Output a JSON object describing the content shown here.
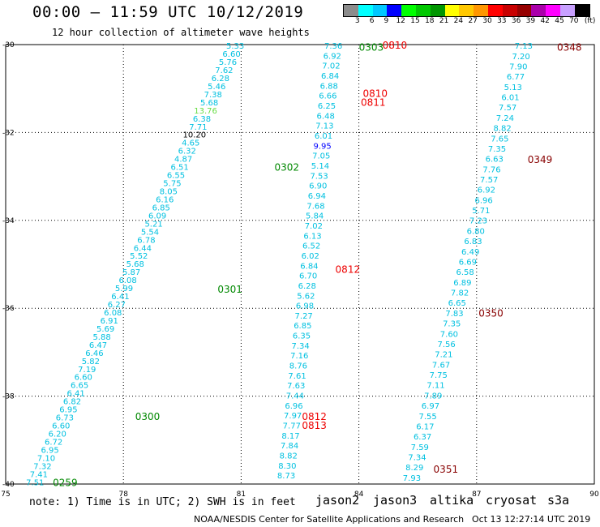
{
  "header": {
    "title": "00:00 — 11:59 UTC 10/12/2019",
    "subtitle": "12 hour collection of altimeter wave heights"
  },
  "colorbar": {
    "unit": "(ft)",
    "labels": [
      "3",
      "6",
      "9",
      "12",
      "15",
      "18",
      "21",
      "24",
      "27",
      "30",
      "33",
      "36",
      "39",
      "42",
      "45",
      "70"
    ],
    "colors": [
      "#8c8c8c",
      "#00ffff",
      "#00c8ff",
      "#0000ff",
      "#00ff00",
      "#00c800",
      "#009600",
      "#ffff00",
      "#ffc800",
      "#ff9600",
      "#ff0000",
      "#c80000",
      "#960000",
      "#aa00aa",
      "#ff00ff",
      "#c8a0ff",
      "#000000"
    ]
  },
  "map": {
    "lon_ticks": [
      "75",
      "78",
      "81",
      "84",
      "87",
      "90"
    ],
    "lat_ticks": [
      "-30",
      "-32",
      "-34",
      "-36",
      "-38",
      "-40"
    ],
    "xlim": [
      75,
      90
    ],
    "ylim": [
      -40,
      -30
    ],
    "wave_colors": {
      "cyan": "#00c0e0",
      "blue": "#0000ff",
      "green": "#00aa00",
      "lgreen": "#66dd44"
    },
    "track1_values": [
      "5.33",
      "6.60",
      "5.76",
      "7.62",
      "6.28",
      "5.46",
      "7.38",
      "5.68",
      "13.76",
      "6.38",
      "7.71",
      "10.20",
      "4.65",
      "6.32",
      "4.87",
      "6.51",
      "6.55",
      "5.75",
      "8.05",
      "6.16",
      "6.85",
      "6.09",
      "5.21",
      "5.54",
      "6.78",
      "6.44",
      "5.52",
      "5.68",
      "5.87",
      "6.08",
      "5.99",
      "6.41",
      "6.27",
      "6.08",
      "6.91",
      "5.69",
      "5.88",
      "6.47",
      "6.46",
      "5.82",
      "7.19",
      "6.60",
      "6.65",
      "6.41",
      "6.82",
      "6.95",
      "6.73",
      "6.60",
      "6.20",
      "6.72",
      "6.95",
      "7.10",
      "7.32",
      "7.41",
      "7.51"
    ],
    "track1_colors": [
      "c",
      "c",
      "c",
      "c",
      "c",
      "c",
      "c",
      "c",
      "g",
      "c",
      "c",
      "k",
      "c",
      "c",
      "c",
      "c",
      "c",
      "c",
      "c",
      "c",
      "c",
      "c",
      "c",
      "c",
      "c",
      "c",
      "c",
      "c",
      "c",
      "c",
      "c",
      "c",
      "c",
      "c",
      "c",
      "c",
      "c",
      "c",
      "c",
      "c",
      "c",
      "c",
      "c",
      "c",
      "c",
      "c",
      "c",
      "c",
      "c",
      "c",
      "c",
      "c",
      "c",
      "c",
      "c"
    ],
    "track2_values": [
      "7.36",
      "6.92",
      "7.02",
      "6.84",
      "6.88",
      "6.66",
      "6.25",
      "6.48",
      "7.13",
      "6.01",
      "9.95",
      "7.05",
      "5.14",
      "7.53",
      "6.90",
      "6.94",
      "7.68",
      "5.84",
      "7.02",
      "6.13",
      "6.52",
      "6.02",
      "6.84",
      "6.70",
      "6.28",
      "5.62",
      "6.98",
      "7.27",
      "6.85",
      "6.35",
      "7.34",
      "7.16",
      "8.76",
      "7.61",
      "7.63",
      "7.44",
      "6.96",
      "7.97",
      "7.77",
      "8.17",
      "7.84",
      "8.82",
      "8.30",
      "8.73"
    ],
    "track3_values": [
      "7.13",
      "7.20",
      "7.90",
      "6.77",
      "5.13",
      "6.01",
      "7.57",
      "7.24",
      "8.82",
      "7.65",
      "7.35",
      "6.63",
      "7.76",
      "7.57",
      "6.92",
      "6.96",
      "5.71",
      "7.23",
      "6.80",
      "6.83",
      "6.49",
      "6.69",
      "6.58",
      "6.89",
      "7.82",
      "6.65",
      "7.83",
      "7.35",
      "7.60",
      "7.56",
      "7.21",
      "7.67",
      "7.75",
      "7.11",
      "7.89",
      "6.97",
      "7.55",
      "6.17",
      "6.37",
      "7.59",
      "7.34",
      "8.29",
      "7.93"
    ],
    "time_labels": [
      {
        "text": "0303",
        "lon": 84.0,
        "lat": -30.05,
        "color": "green"
      },
      {
        "text": "0302",
        "lon": 81.85,
        "lat": -32.78,
        "color": "green"
      },
      {
        "text": "0301",
        "lon": 80.4,
        "lat": -35.55,
        "color": "green"
      },
      {
        "text": "0300",
        "lon": 78.3,
        "lat": -38.45,
        "color": "green"
      },
      {
        "text": "0259",
        "lon": 76.2,
        "lat": -39.95,
        "color": "green"
      },
      {
        "text": "0810",
        "lon": 84.6,
        "lat": -30.0,
        "color": "red"
      },
      {
        "text": "0810",
        "lon": 84.1,
        "lat": -31.1,
        "color": "red"
      },
      {
        "text": "0811",
        "lon": 84.05,
        "lat": -31.3,
        "color": "red"
      },
      {
        "text": "0812",
        "lon": 83.4,
        "lat": -35.1,
        "color": "red"
      },
      {
        "text": "0812",
        "lon": 82.55,
        "lat": -38.45,
        "color": "red"
      },
      {
        "text": "0813",
        "lon": 82.55,
        "lat": -38.65,
        "color": "red"
      },
      {
        "text": "0348",
        "lon": 89.05,
        "lat": -30.05,
        "color": "darkred"
      },
      {
        "text": "0349",
        "lon": 88.3,
        "lat": -32.6,
        "color": "darkred"
      },
      {
        "text": "0350",
        "lon": 87.05,
        "lat": -36.1,
        "color": "darkred"
      },
      {
        "text": "0351",
        "lon": 85.9,
        "lat": -39.65,
        "color": "darkred"
      }
    ]
  },
  "footer": {
    "note": "note: 1) Time is in UTC; 2) SWH is in feet",
    "satellites": [
      {
        "name": "jason2",
        "color": "#0000dd"
      },
      {
        "name": "jason3",
        "color": "#00aa00"
      },
      {
        "name": "altika",
        "color": "#ff9900"
      },
      {
        "name": "cryosat",
        "color": "#ee0000"
      },
      {
        "name": "s3a",
        "color": "#880000"
      }
    ],
    "credit": "NOAA/NESDIS Center for Satellite Applications and Research",
    "timestamp": "Oct 13 12:27:14 UTC 2019"
  }
}
